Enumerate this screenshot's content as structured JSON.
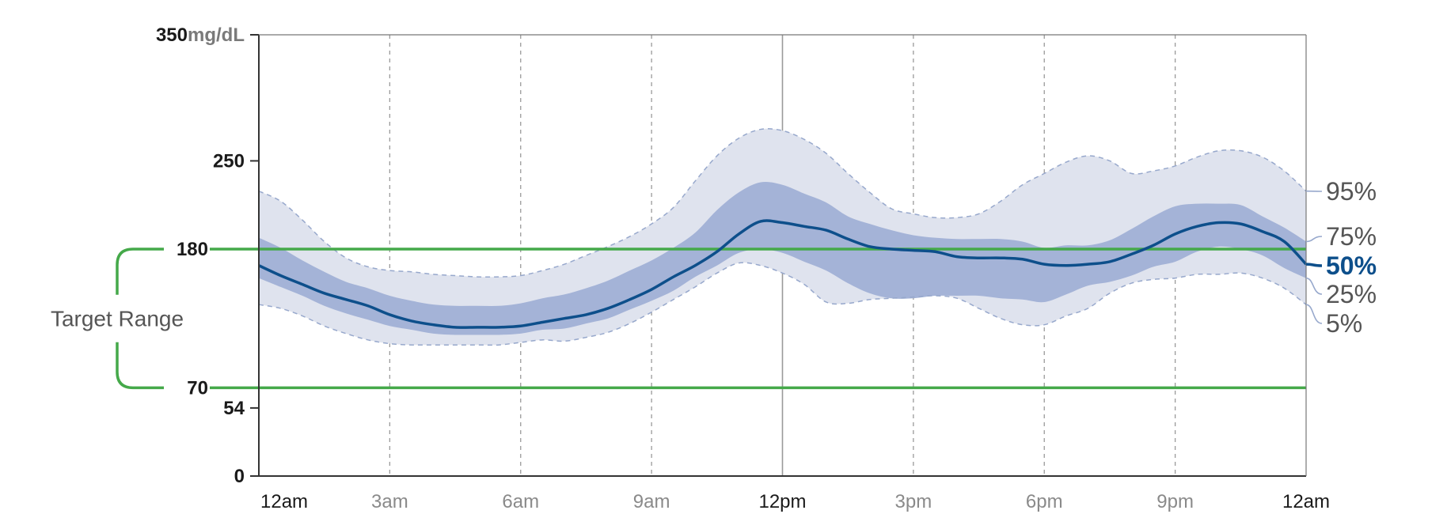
{
  "chart_data": {
    "type": "area",
    "unit": "mg/dL",
    "x_ticks": [
      "12am",
      "3am",
      "6am",
      "9am",
      "12pm",
      "3pm",
      "6pm",
      "9pm",
      "12am"
    ],
    "x_hours": [
      0,
      3,
      6,
      9,
      12,
      15,
      18,
      21,
      24
    ],
    "x_major_ticks": [
      "12am",
      "12pm"
    ],
    "xlim": [
      0,
      24
    ],
    "y_ticks": [
      0,
      54,
      250,
      350
    ],
    "ylim": [
      0,
      350
    ],
    "target_range": {
      "label": "Target Range",
      "low": 70,
      "high": 180,
      "color": "#45a94a"
    },
    "x": [
      0,
      0.5,
      1,
      1.5,
      2,
      2.5,
      3,
      3.5,
      4,
      4.5,
      5,
      5.5,
      6,
      6.5,
      7,
      7.5,
      8,
      8.5,
      9,
      9.5,
      10,
      10.5,
      11,
      11.5,
      12,
      12.5,
      13,
      13.5,
      14,
      14.5,
      15,
      15.5,
      16,
      16.5,
      17,
      17.5,
      18,
      18.5,
      19,
      19.5,
      20,
      20.5,
      21,
      21.5,
      22,
      22.5,
      23,
      23.5,
      24
    ],
    "series": [
      {
        "name": "95%",
        "values": [
          226,
          218,
          203,
          186,
          173,
          166,
          163,
          162,
          160,
          159,
          158,
          158,
          159,
          163,
          168,
          175,
          182,
          190,
          200,
          213,
          234,
          254,
          268,
          275,
          274,
          267,
          256,
          240,
          225,
          212,
          208,
          205,
          205,
          208,
          218,
          231,
          240,
          249,
          254,
          250,
          240,
          242,
          246,
          253,
          258,
          258,
          253,
          242,
          226
        ]
      },
      {
        "name": "75%",
        "values": [
          189,
          181,
          171,
          162,
          154,
          149,
          143,
          139,
          136,
          135,
          135,
          135,
          137,
          141,
          144,
          149,
          155,
          163,
          171,
          181,
          193,
          211,
          225,
          233,
          231,
          224,
          217,
          206,
          200,
          195,
          191,
          189,
          188,
          188,
          188,
          186,
          181,
          183,
          183,
          187,
          196,
          206,
          214,
          216,
          216,
          215,
          206,
          197,
          186
        ]
      },
      {
        "name": "50%",
        "values": [
          167,
          159,
          152,
          145,
          140,
          135,
          128,
          123,
          120,
          118,
          118,
          118,
          119,
          122,
          125,
          128,
          133,
          140,
          148,
          158,
          167,
          178,
          192,
          202,
          201,
          198,
          195,
          188,
          182,
          180,
          179,
          178,
          174,
          173,
          173,
          172,
          168,
          167,
          168,
          170,
          176,
          183,
          192,
          198,
          201,
          200,
          194,
          186,
          168
        ]
      },
      {
        "name": "25%",
        "values": [
          157,
          150,
          143,
          135,
          129,
          124,
          119,
          116,
          113,
          112,
          112,
          112,
          113,
          116,
          117,
          121,
          125,
          132,
          139,
          147,
          158,
          167,
          177,
          180,
          177,
          170,
          163,
          153,
          145,
          141,
          141,
          143,
          143,
          143,
          141,
          140,
          138,
          144,
          151,
          154,
          159,
          166,
          170,
          178,
          182,
          180,
          175,
          165,
          157
        ]
      },
      {
        "name": "5%",
        "values": [
          136,
          133,
          127,
          119,
          113,
          108,
          105,
          104,
          104,
          104,
          104,
          104,
          106,
          108,
          107,
          110,
          114,
          121,
          130,
          140,
          150,
          161,
          169,
          167,
          161,
          152,
          138,
          137,
          140,
          141,
          142,
          143,
          141,
          133,
          125,
          120,
          120,
          127,
          133,
          145,
          153,
          156,
          157,
          160,
          160,
          161,
          157,
          149,
          136
        ]
      }
    ],
    "percentile_labels": [
      "95%",
      "75%",
      "50%",
      "25%",
      "5%"
    ],
    "median_label": "50%",
    "colors": {
      "outer_band": "#dfe3ee",
      "inner_band": "#a4b3d7",
      "median_line": "#0d4f8b",
      "outer_dash": "#97a8cc",
      "grid": "#9a9a9a",
      "axis": "#333333"
    },
    "grid": true
  }
}
